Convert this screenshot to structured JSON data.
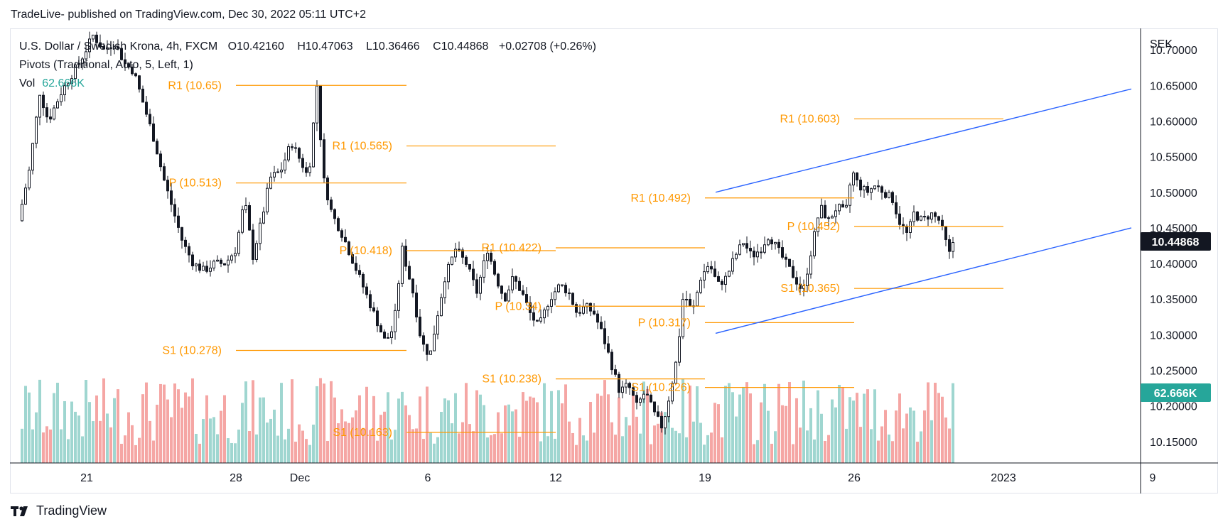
{
  "header": {
    "publish_line": "TradeLive- published on TradingView.com, Dec 30, 2022 05:11 UTC+2"
  },
  "footer": {
    "brand": "TradingView",
    "logo_icon": "tradingview-logo-icon"
  },
  "legend": {
    "symbol": "U.S. Dollar / Swedish Krona, 4h, FXCM",
    "ohlc": [
      {
        "label": "O",
        "value": "10.42160"
      },
      {
        "label": "H",
        "value": "10.47063"
      },
      {
        "label": "L",
        "value": "10.36466"
      },
      {
        "label": "C",
        "value": "10.44868"
      }
    ],
    "change": "+0.02708 (+0.26%)",
    "pivots": "Pivots (Traditional, Auto, 5, Left, 1)",
    "vol_label": "Vol",
    "vol_value": "62.666K"
  },
  "chart_data": {
    "type": "candlestick",
    "currency": "SEK",
    "ylim": [
      10.12,
      10.73
    ],
    "y_ticks": [
      "10.70000",
      "10.65000",
      "10.60000",
      "10.55000",
      "10.50000",
      "10.45000",
      "10.40000",
      "10.35000",
      "10.30000",
      "10.25000",
      "10.20000",
      "10.15000"
    ],
    "x_ticks": [
      {
        "label": "21",
        "day": 0
      },
      {
        "label": "28",
        "day": 7
      },
      {
        "label": "Dec",
        "day": 10
      },
      {
        "label": "6",
        "day": 16
      },
      {
        "label": "12",
        "day": 22
      },
      {
        "label": "19",
        "day": 29
      },
      {
        "label": "26",
        "day": 36
      },
      {
        "label": "2023",
        "day": 43
      },
      {
        "label": "9",
        "day": 50
      }
    ],
    "current_price": "10.44868",
    "current_volume": "62.666K",
    "colors": {
      "up": "#26a69a",
      "down": "#ef5350",
      "candle": "#131722",
      "pivot": "#ff9800",
      "channel": "#2962ff",
      "vol_up": "#9fd6d0",
      "vol_down": "#f5a6a4"
    },
    "price_path": [
      [
        -3.2,
        10.46
      ],
      [
        -2.7,
        10.53
      ],
      [
        -2.2,
        10.64
      ],
      [
        -1.8,
        10.6
      ],
      [
        -1.2,
        10.64
      ],
      [
        -0.6,
        10.67
      ],
      [
        -0.2,
        10.69
      ],
      [
        0.3,
        10.72
      ],
      [
        0.8,
        10.7
      ],
      [
        1.3,
        10.71
      ],
      [
        1.8,
        10.68
      ],
      [
        2.2,
        10.67
      ],
      [
        2.7,
        10.62
      ],
      [
        3.2,
        10.57
      ],
      [
        3.6,
        10.52
      ],
      [
        4.0,
        10.48
      ],
      [
        4.5,
        10.43
      ],
      [
        5.0,
        10.4
      ],
      [
        5.5,
        10.39
      ],
      [
        6.0,
        10.4
      ],
      [
        6.5,
        10.4
      ],
      [
        7.0,
        10.42
      ],
      [
        7.4,
        10.49
      ],
      [
        7.8,
        10.41
      ],
      [
        8.2,
        10.46
      ],
      [
        8.6,
        10.52
      ],
      [
        9.1,
        10.53
      ],
      [
        9.6,
        10.57
      ],
      [
        10.1,
        10.54
      ],
      [
        10.4,
        10.52
      ],
      [
        10.8,
        10.65
      ],
      [
        11.1,
        10.52
      ],
      [
        11.5,
        10.47
      ],
      [
        12.0,
        10.44
      ],
      [
        12.4,
        10.41
      ],
      [
        12.8,
        10.38
      ],
      [
        13.2,
        10.35
      ],
      [
        13.6,
        10.32
      ],
      [
        14.0,
        10.29
      ],
      [
        14.4,
        10.31
      ],
      [
        14.8,
        10.42
      ],
      [
        15.3,
        10.36
      ],
      [
        15.7,
        10.29
      ],
      [
        16.1,
        10.27
      ],
      [
        16.4,
        10.32
      ],
      [
        16.8,
        10.38
      ],
      [
        17.3,
        10.42
      ],
      [
        17.8,
        10.4
      ],
      [
        18.3,
        10.36
      ],
      [
        18.8,
        10.42
      ],
      [
        19.2,
        10.38
      ],
      [
        19.6,
        10.35
      ],
      [
        20.0,
        10.38
      ],
      [
        20.4,
        10.36
      ],
      [
        20.8,
        10.33
      ],
      [
        21.2,
        10.31
      ],
      [
        21.7,
        10.35
      ],
      [
        22.2,
        10.37
      ],
      [
        22.6,
        10.36
      ],
      [
        23.0,
        10.33
      ],
      [
        23.4,
        10.34
      ],
      [
        23.8,
        10.33
      ],
      [
        24.2,
        10.3
      ],
      [
        24.6,
        10.26
      ],
      [
        25.0,
        10.22
      ],
      [
        25.4,
        10.23
      ],
      [
        25.8,
        10.2
      ],
      [
        26.2,
        10.22
      ],
      [
        26.6,
        10.19
      ],
      [
        27.0,
        10.17
      ],
      [
        27.3,
        10.21
      ],
      [
        27.7,
        10.27
      ],
      [
        28.0,
        10.36
      ],
      [
        28.4,
        10.33
      ],
      [
        28.8,
        10.38
      ],
      [
        29.2,
        10.4
      ],
      [
        29.6,
        10.37
      ],
      [
        30.0,
        10.38
      ],
      [
        30.4,
        10.41
      ],
      [
        30.8,
        10.43
      ],
      [
        31.2,
        10.41
      ],
      [
        31.6,
        10.42
      ],
      [
        32.0,
        10.44
      ],
      [
        32.4,
        10.42
      ],
      [
        32.8,
        10.4
      ],
      [
        33.2,
        10.38
      ],
      [
        33.6,
        10.36
      ],
      [
        34.0,
        10.42
      ],
      [
        34.4,
        10.48
      ],
      [
        34.8,
        10.46
      ],
      [
        35.2,
        10.48
      ],
      [
        35.6,
        10.47
      ],
      [
        35.9,
        10.53
      ],
      [
        36.2,
        10.51
      ],
      [
        36.6,
        10.5
      ],
      [
        37.0,
        10.51
      ],
      [
        37.4,
        10.5
      ],
      [
        37.8,
        10.49
      ],
      [
        38.1,
        10.46
      ],
      [
        38.5,
        10.44
      ],
      [
        38.8,
        10.47
      ],
      [
        39.2,
        10.46
      ],
      [
        39.6,
        10.47
      ],
      [
        40.0,
        10.46
      ],
      [
        40.3,
        10.43
      ],
      [
        40.5,
        10.41
      ],
      [
        40.6,
        10.42
      ],
      [
        40.7,
        10.45
      ]
    ],
    "pivot_levels": [
      {
        "label": "R1 (10.65)",
        "value": 10.65,
        "from": 7.0,
        "to": 15.0
      },
      {
        "label": "P (10.513)",
        "value": 10.513,
        "from": 7.0,
        "to": 15.0
      },
      {
        "label": "S1 (10.278)",
        "value": 10.278,
        "from": 7.0,
        "to": 15.0
      },
      {
        "label": "R1 (10.565)",
        "value": 10.565,
        "from": 15.0,
        "to": 22.0
      },
      {
        "label": "P (10.418)",
        "value": 10.418,
        "from": 15.0,
        "to": 22.0
      },
      {
        "label": "S1 (10.163)",
        "value": 10.163,
        "from": 15.0,
        "to": 22.0
      },
      {
        "label": "R1 (10.422)",
        "value": 10.422,
        "from": 22.0,
        "to": 29.0
      },
      {
        "label": "P (10.34)",
        "value": 10.34,
        "from": 22.0,
        "to": 29.0
      },
      {
        "label": "S1 (10.238)",
        "value": 10.238,
        "from": 22.0,
        "to": 29.0
      },
      {
        "label": "R1 (10.492)",
        "value": 10.492,
        "from": 29.0,
        "to": 36.0
      },
      {
        "label": "P (10.317)",
        "value": 10.317,
        "from": 29.0,
        "to": 36.0
      },
      {
        "label": "S1 (10.226)",
        "value": 10.226,
        "from": 29.0,
        "to": 36.0
      },
      {
        "label": "R1 (10.603)",
        "value": 10.603,
        "from": 36.0,
        "to": 43.0
      },
      {
        "label": "P (10.452)",
        "value": 10.452,
        "from": 36.0,
        "to": 43.0
      },
      {
        "label": "S1 (10.365)",
        "value": 10.365,
        "from": 36.0,
        "to": 43.0
      }
    ],
    "trend_lines": [
      {
        "name": "channel-upper",
        "x1": 29.5,
        "y1": 10.5,
        "x2": 49.0,
        "y2": 10.645
      },
      {
        "name": "channel-lower",
        "x1": 29.5,
        "y1": 10.302,
        "x2": 49.0,
        "y2": 10.45
      }
    ]
  }
}
